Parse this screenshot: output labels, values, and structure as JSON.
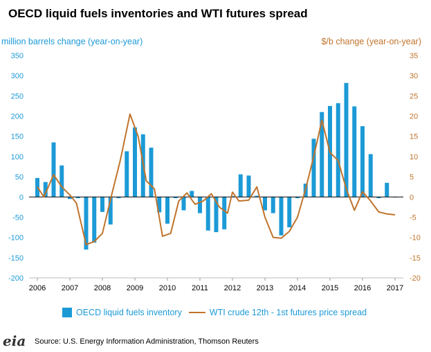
{
  "chart_data": {
    "type": "bar+line",
    "title": "OECD liquid fuels inventories and WTI futures spread",
    "ylabel_left": "million barrels change (year-on-year)",
    "ylabel_right": "$/b change (year-on-year)",
    "ylim_left": [
      -200,
      350
    ],
    "ylim_right": [
      -20,
      35
    ],
    "yticks_left": [
      "350",
      "300",
      "250",
      "200",
      "150",
      "100",
      "50",
      "0",
      "-50",
      "-100",
      "-150",
      "-200"
    ],
    "yticks_right": [
      "35",
      "30",
      "25",
      "20",
      "15",
      "10",
      "5",
      "0",
      "-5",
      "-10",
      "-15",
      "-20"
    ],
    "xticks": [
      "2006",
      "2007",
      "2008",
      "2009",
      "2010",
      "2011",
      "2012",
      "2013",
      "2014",
      "2015",
      "2016",
      "2017"
    ],
    "legend_position": "bottom",
    "series": [
      {
        "name": "OECD liquid fuels inventory",
        "kind": "bar",
        "axis": "left",
        "color": "#1c9ad6",
        "x": [
          2006.0,
          2006.25,
          2006.5,
          2006.75,
          2007.0,
          2007.25,
          2007.5,
          2007.75,
          2008.0,
          2008.25,
          2008.5,
          2008.75,
          2009.0,
          2009.25,
          2009.5,
          2009.75,
          2010.0,
          2010.25,
          2010.5,
          2010.75,
          2011.0,
          2011.25,
          2011.5,
          2011.75,
          2012.0,
          2012.25,
          2012.5,
          2012.75,
          2013.0,
          2013.25,
          2013.5,
          2013.75,
          2014.0,
          2014.25,
          2014.5,
          2014.75,
          2015.0,
          2015.25,
          2015.5,
          2015.75,
          2016.0,
          2016.25,
          2016.5,
          2016.75,
          2017.0
        ],
        "values": [
          47,
          37,
          135,
          78,
          -5,
          -3,
          -130,
          -113,
          -37,
          -68,
          -3,
          113,
          172,
          155,
          122,
          -38,
          -66,
          -3,
          -33,
          15,
          -40,
          -83,
          -87,
          -80,
          2,
          56,
          53,
          3,
          -33,
          -40,
          -95,
          -75,
          -3,
          33,
          144,
          210,
          225,
          232,
          282,
          224,
          175,
          106,
          -3,
          35,
          0
        ]
      },
      {
        "name": "WTI crude 12th - 1st futures price spread",
        "kind": "line",
        "axis": "right",
        "color": "#c0732b",
        "x": [
          2006.0,
          2006.2,
          2006.5,
          2006.75,
          2007.0,
          2007.2,
          2007.5,
          2007.75,
          2008.0,
          2008.3,
          2008.55,
          2008.85,
          2009.1,
          2009.35,
          2009.6,
          2009.85,
          2010.1,
          2010.35,
          2010.6,
          2010.85,
          2011.1,
          2011.35,
          2011.6,
          2011.85,
          2012.0,
          2012.2,
          2012.5,
          2012.75,
          2013.0,
          2013.25,
          2013.5,
          2013.75,
          2014.0,
          2014.25,
          2014.5,
          2014.75,
          2015.0,
          2015.25,
          2015.5,
          2015.75,
          2016.0,
          2016.25,
          2016.5,
          2016.75,
          2017.0
        ],
        "values": [
          2.5,
          0,
          5.5,
          2.5,
          0.5,
          -1.5,
          -11.8,
          -11,
          -9,
          1,
          9,
          20.5,
          15,
          4,
          2,
          -9.7,
          -9,
          -1,
          1,
          -1.8,
          -1,
          0.8,
          -2.5,
          -4,
          1.2,
          -1,
          -0.8,
          2.5,
          -5,
          -10,
          -10.2,
          -8.5,
          -5,
          2,
          10,
          19,
          11,
          9,
          2,
          -3.3,
          1.3,
          -1,
          -3.7,
          -4.2,
          -4.4
        ]
      }
    ]
  },
  "footer": {
    "logo_text": "eia",
    "source": "Source: U.S. Energy Information Administration, Thomson Reuters"
  }
}
